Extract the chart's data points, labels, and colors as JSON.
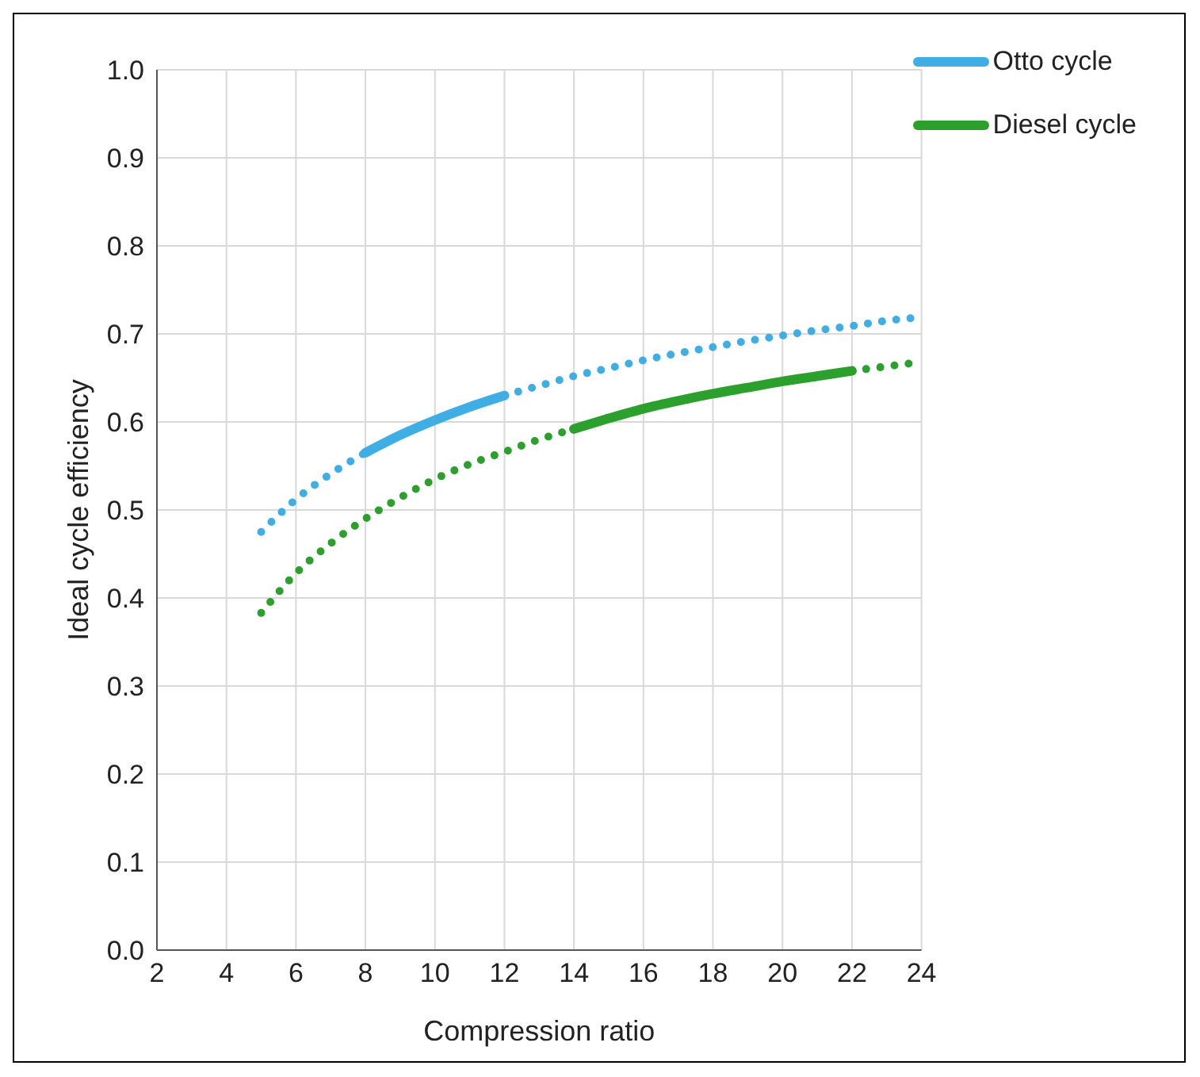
{
  "chart_data": {
    "type": "line",
    "xlabel": "Compression ratio",
    "ylabel": "Ideal cycle efficiency",
    "xlim": [
      2,
      24
    ],
    "xticks": [
      2,
      4,
      6,
      8,
      10,
      12,
      14,
      16,
      18,
      20,
      22,
      24
    ],
    "ylim": [
      0,
      1
    ],
    "yticks": [
      {
        "value": 0,
        "label": "0.0"
      },
      0.1,
      0.2,
      0.3,
      0.4,
      0.5,
      0.6,
      0.7,
      0.8,
      0.9,
      {
        "value": 1,
        "label": "1.0"
      }
    ],
    "grid": true,
    "legend": "top right",
    "marker": "none",
    "series": [
      {
        "color": "#3eaee5",
        "line_style": "dotted",
        "x": [
          5,
          6,
          7,
          8
        ],
        "values": [
          0.475,
          0.512,
          0.541,
          0.565
        ]
      },
      {
        "name": "Otto cycle",
        "color": "#3eaee5",
        "line_style": "solid",
        "x": [
          8,
          9,
          10,
          11,
          12
        ],
        "values": [
          0.565,
          0.585,
          0.602,
          0.617,
          0.63
        ]
      },
      {
        "color": "#3eaee5",
        "line_style": "dotted",
        "x": [
          12,
          13,
          14,
          15,
          16,
          17,
          18,
          19,
          20,
          21,
          22,
          23,
          24
        ],
        "values": [
          0.63,
          0.641,
          0.652,
          0.661,
          0.67,
          0.678,
          0.685,
          0.692,
          0.698,
          0.704,
          0.709,
          0.715,
          0.719
        ]
      },
      {
        "color": "#2ca02c",
        "line_style": "dotted",
        "x": [
          5,
          6,
          7,
          8,
          9,
          10,
          11,
          12,
          13,
          14
        ],
        "values": [
          0.383,
          0.428,
          0.462,
          0.49,
          0.514,
          0.535,
          0.552,
          0.566,
          0.58,
          0.592
        ]
      },
      {
        "name": "Diesel cycle",
        "color": "#2ca02c",
        "line_style": "solid",
        "x": [
          14,
          15,
          16,
          17,
          18,
          19,
          20,
          21,
          22
        ],
        "values": [
          0.592,
          0.604,
          0.615,
          0.624,
          0.632,
          0.639,
          0.646,
          0.652,
          0.658
        ]
      },
      {
        "color": "#2ca02c",
        "line_style": "dotted",
        "x": [
          22,
          23,
          24
        ],
        "values": [
          0.658,
          0.663,
          0.668
        ]
      }
    ]
  }
}
